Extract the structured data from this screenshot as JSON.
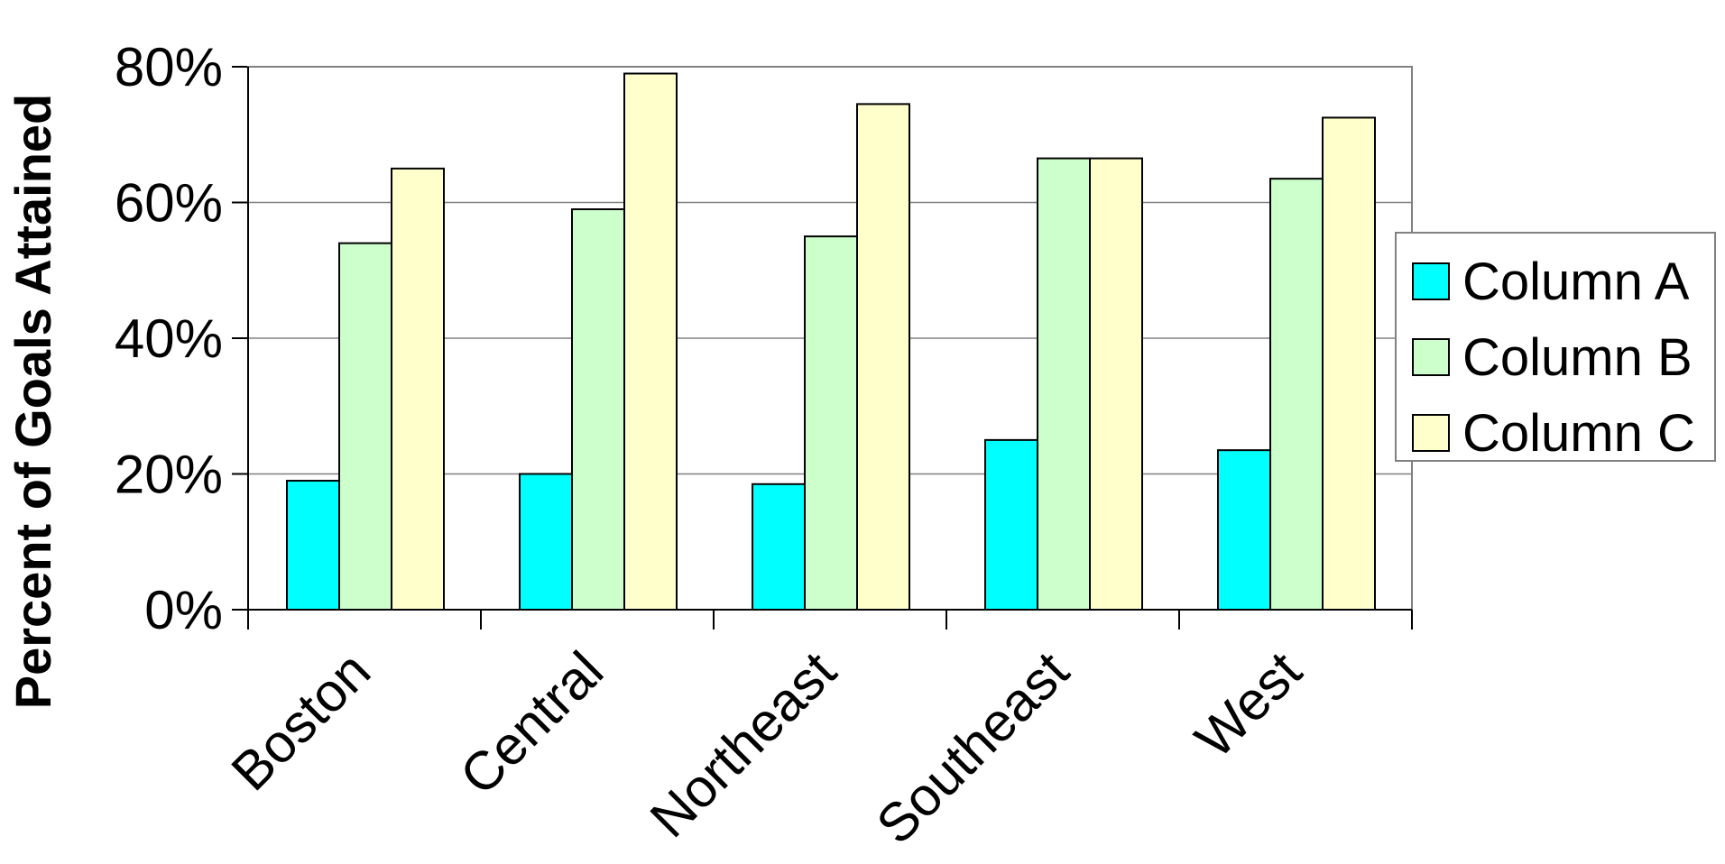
{
  "chart_data": {
    "type": "bar",
    "title": "",
    "xlabel": "",
    "ylabel": "Percent of Goals Attained",
    "ylim": [
      0,
      0.8
    ],
    "yticks": [
      "0%",
      "20%",
      "40%",
      "60%",
      "80%"
    ],
    "categories": [
      "Boston",
      "Central",
      "Northeast",
      "Southeast",
      "West"
    ],
    "series": [
      {
        "name": "Column A",
        "color": "#00ffff",
        "values": [
          0.19,
          0.2,
          0.185,
          0.25,
          0.235
        ]
      },
      {
        "name": "Column B",
        "color": "#ccffcc",
        "values": [
          0.54,
          0.59,
          0.55,
          0.665,
          0.635
        ]
      },
      {
        "name": "Column C",
        "color": "#ffffcc",
        "values": [
          0.65,
          0.79,
          0.745,
          0.665,
          0.725
        ]
      }
    ],
    "grid": true,
    "legend": "right"
  }
}
